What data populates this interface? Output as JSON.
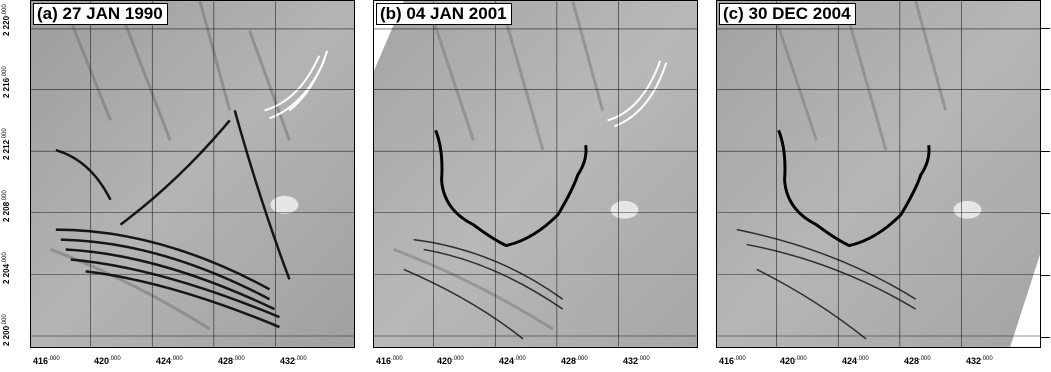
{
  "panels": [
    {
      "id": "a",
      "title": "(a) 27 JAN 1990"
    },
    {
      "id": "b",
      "title": "(b) 04 JAN 2001"
    },
    {
      "id": "c",
      "title": "(c) 30 DEC 2004"
    }
  ],
  "axes": {
    "x_ticks": [
      {
        "main": "416",
        "sup": ".000"
      },
      {
        "main": "420",
        "sup": ".000"
      },
      {
        "main": "424",
        "sup": ".000"
      },
      {
        "main": "428",
        "sup": ".000"
      },
      {
        "main": "432",
        "sup": ".000"
      }
    ],
    "y_ticks": [
      {
        "main": "2 220",
        "sup": ".000"
      },
      {
        "main": "2 216",
        "sup": ".000"
      },
      {
        "main": "2 212",
        "sup": ".000"
      },
      {
        "main": "2 208",
        "sup": ".000"
      },
      {
        "main": "2 204",
        "sup": ".000"
      },
      {
        "main": "2 200",
        "sup": ".000"
      }
    ]
  },
  "colors": {
    "ice_base": "#a8a8a8",
    "crevasse": "#1a1a1a",
    "front_line": "#000000",
    "overlay_white": "#ffffff"
  }
}
